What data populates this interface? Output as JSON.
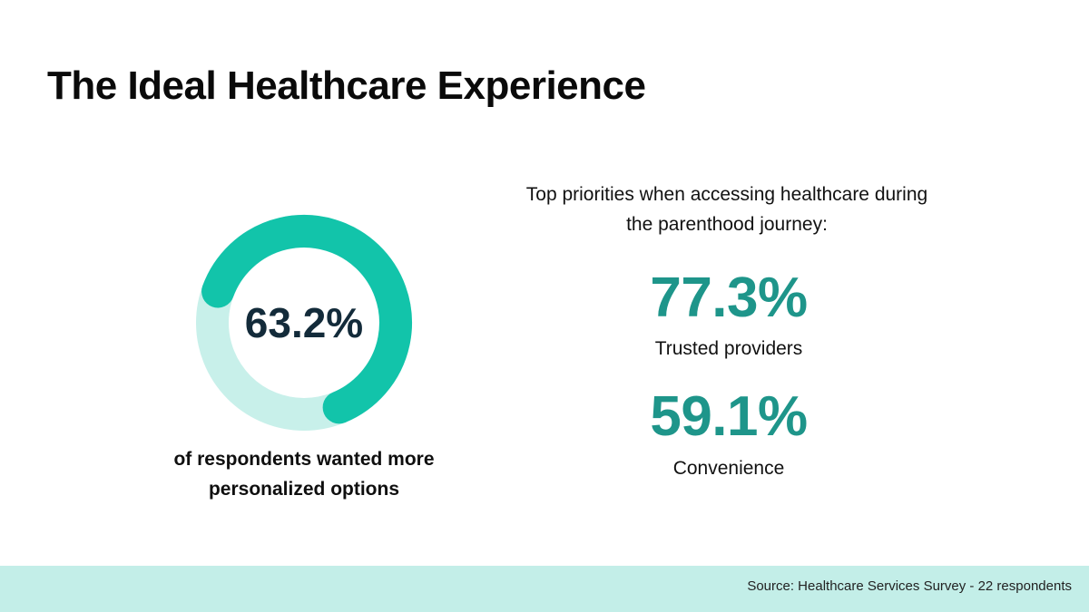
{
  "title": "The Ideal Healthcare Experience",
  "chart_data": {
    "type": "pie",
    "subtype": "donut",
    "values": [
      63.2,
      36.8
    ],
    "center_label": "63.2%",
    "caption": "of respondents wanted more personalized options",
    "colors": {
      "filled": "#12c4aa",
      "remaining": "#c8f0ea"
    }
  },
  "priorities": {
    "heading": "Top priorities when accessing healthcare during the parenthood journey:",
    "items": [
      {
        "value": "77.3%",
        "label": "Trusted providers"
      },
      {
        "value": "59.1%",
        "label": "Convenience"
      }
    ]
  },
  "footer": {
    "source": "Source: Healthcare Services Survey - 22 respondents"
  },
  "colors": {
    "accent_text": "#1e958a",
    "footer_bg": "#c3eee8"
  }
}
